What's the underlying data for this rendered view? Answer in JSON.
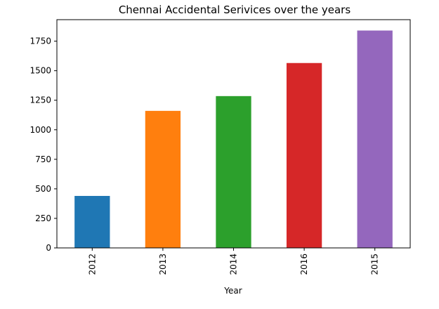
{
  "chart_data": {
    "type": "bar",
    "title": "Chennai Accidental Serivices over the years",
    "xlabel": "Year",
    "ylabel": "",
    "categories": [
      "2012",
      "2013",
      "2014",
      "2016",
      "2015"
    ],
    "values": [
      440,
      1160,
      1285,
      1565,
      1840
    ],
    "colors": [
      "#1f77b4",
      "#ff7f0e",
      "#2ca02c",
      "#d62728",
      "#9467bd"
    ],
    "ylim": [
      0,
      1932
    ],
    "yticks": [
      0,
      250,
      500,
      750,
      1000,
      1250,
      1500,
      1750
    ],
    "grid": false,
    "legend": "none",
    "xtick_rotation": 90
  }
}
